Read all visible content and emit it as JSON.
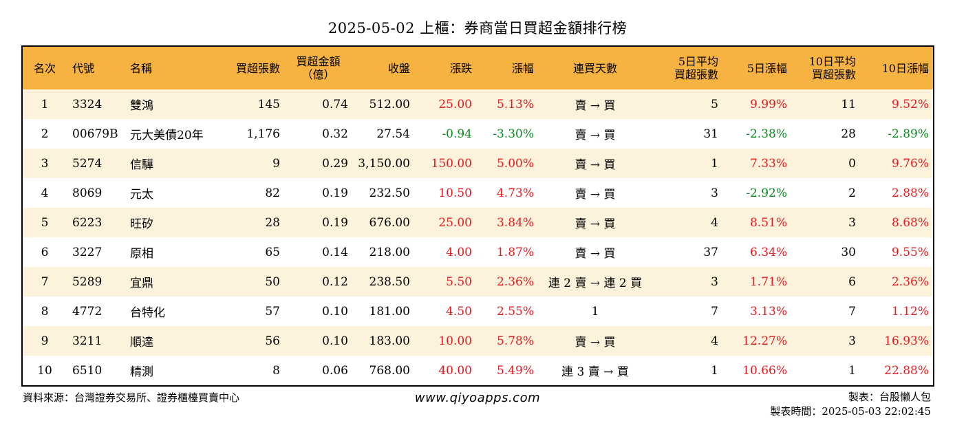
{
  "title": "2025-05-02 上櫃：券商當日買超金額排行榜",
  "headers": {
    "rank": "名次",
    "code": "代號",
    "name": "名稱",
    "buy_lots": "買超張數",
    "amount_1": "買超金額",
    "amount_2": "（億）",
    "close": "收盤",
    "change": "漲跌",
    "pct": "漲幅",
    "days": "連買天數",
    "avg5_1": "5日平均",
    "avg5_2": "買超張數",
    "pct5": "5日漲幅",
    "avg10_1": "10日平均",
    "avg10_2": "買超張數",
    "pct10": "10日漲幅"
  },
  "rows": [
    {
      "rank": "1",
      "code": "3324",
      "name": "雙鴻",
      "buy_lots": "145",
      "amount": "0.74",
      "close": "512.00",
      "change": "25.00",
      "pct": "5.13%",
      "days": "賣 → 買",
      "avg5": "5",
      "pct5": "9.99%",
      "avg10": "11",
      "pct10": "9.52%"
    },
    {
      "rank": "2",
      "code": "00679B",
      "name": "元大美債20年",
      "buy_lots": "1,176",
      "amount": "0.32",
      "close": "27.54",
      "change": "-0.94",
      "pct": "-3.30%",
      "days": "賣 → 買",
      "avg5": "31",
      "pct5": "-2.38%",
      "avg10": "28",
      "pct10": "-2.89%"
    },
    {
      "rank": "3",
      "code": "5274",
      "name": "信驊",
      "buy_lots": "9",
      "amount": "0.29",
      "close": "3,150.00",
      "change": "150.00",
      "pct": "5.00%",
      "days": "賣 → 買",
      "avg5": "1",
      "pct5": "7.33%",
      "avg10": "0",
      "pct10": "9.76%"
    },
    {
      "rank": "4",
      "code": "8069",
      "name": "元太",
      "buy_lots": "82",
      "amount": "0.19",
      "close": "232.50",
      "change": "10.50",
      "pct": "4.73%",
      "days": "賣 → 買",
      "avg5": "3",
      "pct5": "-2.92%",
      "avg10": "2",
      "pct10": "2.88%"
    },
    {
      "rank": "5",
      "code": "6223",
      "name": "旺矽",
      "buy_lots": "28",
      "amount": "0.19",
      "close": "676.00",
      "change": "25.00",
      "pct": "3.84%",
      "days": "賣 → 買",
      "avg5": "4",
      "pct5": "8.51%",
      "avg10": "3",
      "pct10": "8.68%"
    },
    {
      "rank": "6",
      "code": "3227",
      "name": "原相",
      "buy_lots": "65",
      "amount": "0.14",
      "close": "218.00",
      "change": "4.00",
      "pct": "1.87%",
      "days": "賣 → 買",
      "avg5": "37",
      "pct5": "6.34%",
      "avg10": "30",
      "pct10": "9.55%"
    },
    {
      "rank": "7",
      "code": "5289",
      "name": "宜鼎",
      "buy_lots": "50",
      "amount": "0.12",
      "close": "238.50",
      "change": "5.50",
      "pct": "2.36%",
      "days": "連 2 賣 → 連 2 買",
      "avg5": "3",
      "pct5": "1.71%",
      "avg10": "6",
      "pct10": "2.36%"
    },
    {
      "rank": "8",
      "code": "4772",
      "name": "台特化",
      "buy_lots": "57",
      "amount": "0.10",
      "close": "181.00",
      "change": "4.50",
      "pct": "2.55%",
      "days": "1",
      "avg5": "7",
      "pct5": "3.13%",
      "avg10": "7",
      "pct10": "1.12%"
    },
    {
      "rank": "9",
      "code": "3211",
      "name": "順達",
      "buy_lots": "56",
      "amount": "0.10",
      "close": "183.00",
      "change": "10.00",
      "pct": "5.78%",
      "days": "賣 → 買",
      "avg5": "4",
      "pct5": "12.27%",
      "avg10": "3",
      "pct10": "16.93%"
    },
    {
      "rank": "10",
      "code": "6510",
      "name": "精測",
      "buy_lots": "8",
      "amount": "0.06",
      "close": "768.00",
      "change": "40.00",
      "pct": "5.49%",
      "days": "連 3 賣 → 買",
      "avg5": "1",
      "pct5": "10.66%",
      "avg10": "1",
      "pct10": "22.88%"
    }
  ],
  "footer": {
    "source": "資料來源：台灣證券交易所、證券櫃檯買賣中心",
    "website": "www.qiyoapps.com",
    "maker": "製表：台股懶人包",
    "made_time": "製表時間：2025-05-03 22:02:45"
  },
  "colors": {
    "header_bg": "#f7b342",
    "stripe_bg": "#fdf3dd",
    "up": "#e8191e",
    "down": "#0a8a1f"
  }
}
